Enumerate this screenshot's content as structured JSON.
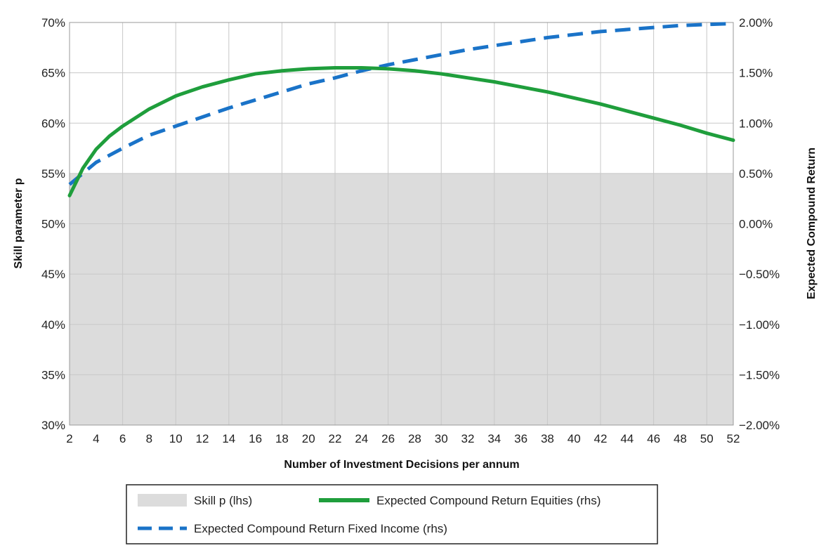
{
  "chart_data": {
    "type": "line",
    "xlabel": "Number of Investment Decisions per annum",
    "ylabel_left": "Skill parameter p",
    "ylabel_right": "Expected Compound Return",
    "xlim": [
      2,
      52
    ],
    "ylim_left": [
      0.3,
      0.7
    ],
    "ylim_right": [
      -0.02,
      0.02
    ],
    "x_ticks": [
      "2",
      "4",
      "6",
      "8",
      "10",
      "12",
      "14",
      "16",
      "18",
      "20",
      "22",
      "24",
      "26",
      "28",
      "30",
      "32",
      "34",
      "36",
      "38",
      "40",
      "42",
      "44",
      "46",
      "48",
      "50",
      "52"
    ],
    "y_ticks_left": [
      "30%",
      "35%",
      "40%",
      "45%",
      "50%",
      "55%",
      "60%",
      "65%",
      "70%"
    ],
    "y_ticks_right": [
      "-2.00%",
      "-1.50%",
      "-1.00%",
      "-0.50%",
      "0.00%",
      "0.50%",
      "1.00%",
      "1.50%",
      "2.00%"
    ],
    "grid": true,
    "legend_position": "bottom-center",
    "series": [
      {
        "name": "Skill p (lhs)",
        "kind": "area",
        "axis": "left",
        "color": "#dcdcdc",
        "x": [
          2,
          52
        ],
        "y": [
          0.55,
          0.55
        ]
      },
      {
        "name": "Expected Compound Return Equities (rhs)",
        "kind": "line",
        "axis": "right",
        "color": "#1f9e3c",
        "x": [
          2,
          3,
          4,
          5,
          6,
          8,
          10,
          12,
          14,
          16,
          18,
          20,
          22,
          24,
          26,
          28,
          30,
          32,
          34,
          36,
          38,
          40,
          42,
          44,
          46,
          48,
          50,
          52
        ],
        "y": [
          0.0028,
          0.0055,
          0.0074,
          0.0087,
          0.0097,
          0.0114,
          0.0127,
          0.0136,
          0.0143,
          0.0149,
          0.0152,
          0.0154,
          0.0155,
          0.0155,
          0.0154,
          0.0152,
          0.0149,
          0.0145,
          0.0141,
          0.0136,
          0.0131,
          0.0125,
          0.0119,
          0.0112,
          0.0105,
          0.0098,
          0.009,
          0.0083
        ]
      },
      {
        "name": "Expected Compound Return Fixed Income (rhs)",
        "kind": "dashed-line",
        "axis": "right",
        "color": "#1a73c8",
        "x": [
          2,
          4,
          6,
          8,
          10,
          12,
          14,
          16,
          18,
          20,
          22,
          24,
          26,
          28,
          30,
          32,
          34,
          36,
          38,
          40,
          42,
          44,
          46,
          48,
          50,
          52
        ],
        "y": [
          0.0039,
          0.0061,
          0.0075,
          0.0088,
          0.0097,
          0.0106,
          0.0115,
          0.0123,
          0.0131,
          0.0139,
          0.0145,
          0.0152,
          0.0158,
          0.0163,
          0.0168,
          0.0173,
          0.0177,
          0.0181,
          0.0185,
          0.0188,
          0.0191,
          0.0193,
          0.0195,
          0.0197,
          0.0198,
          0.0199
        ]
      }
    ]
  }
}
